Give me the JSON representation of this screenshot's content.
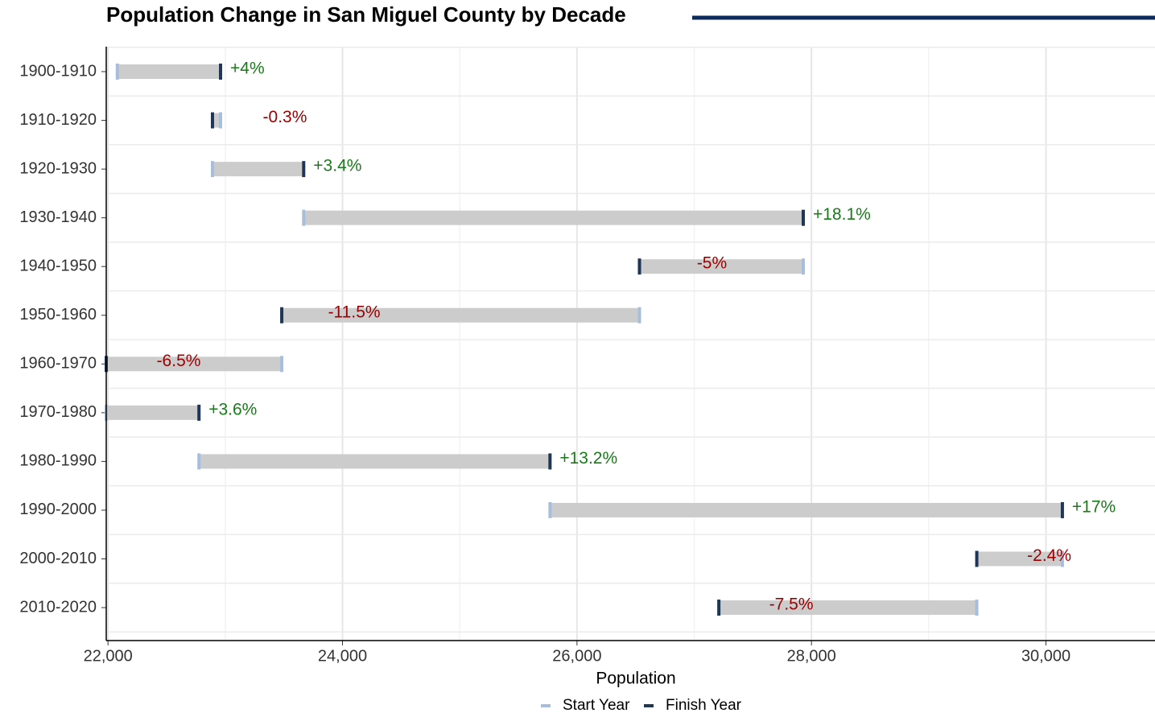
{
  "chart_data": {
    "type": "dumbbell",
    "title": "Population Change in San Miguel County by Decade",
    "x_label": "Population",
    "categories": [
      "1900-1910",
      "1910-1920",
      "1920-1930",
      "1930-1940",
      "1940-1950",
      "1950-1960",
      "1960-1970",
      "1970-1980",
      "1980-1990",
      "1990-2000",
      "2000-2010",
      "2010-2020"
    ],
    "series": [
      {
        "name": "Start Year",
        "color": "#a7bfdc",
        "values": [
          22080,
          22960,
          22891,
          23669,
          27930,
          26533,
          23482,
          21985,
          22776,
          25770,
          30140,
          29410
        ]
      },
      {
        "name": "Finish Year",
        "color": "#1f3657",
        "values": [
          22960,
          22891,
          23669,
          27930,
          26533,
          23482,
          21985,
          22776,
          25770,
          30140,
          29410,
          27210
        ]
      }
    ],
    "changes": {
      "values": [
        4,
        -0.3,
        3.4,
        18.1,
        -5,
        -11.5,
        -6.5,
        3.6,
        13.2,
        17,
        -2.4,
        -7.5
      ],
      "value_labels": [
        "+4%",
        "-0.3%",
        "+3.4%",
        "+18.1%",
        "-5%",
        "-11.5%",
        "-6.5%",
        "+3.6%",
        "+13.2%",
        "+17%",
        "-2.4%",
        "-7.5%"
      ],
      "positive_color": "#1a7a1a",
      "negative_color": "#9b0000"
    },
    "bar_color": "#cccccc",
    "title_rule_color": "#0d2a5c",
    "xlim": [
      21985,
      30930
    ],
    "xticks": [
      {
        "value": 22000,
        "label": "22,000"
      },
      {
        "value": 24000,
        "label": "24,000"
      },
      {
        "value": 26000,
        "label": "26,000"
      },
      {
        "value": 28000,
        "label": "28,000"
      },
      {
        "value": 30000,
        "label": "30,000"
      }
    ],
    "xticks_minor": [
      23000,
      25000,
      27000,
      29000
    ],
    "grid": true,
    "legend_position": "bottom"
  }
}
